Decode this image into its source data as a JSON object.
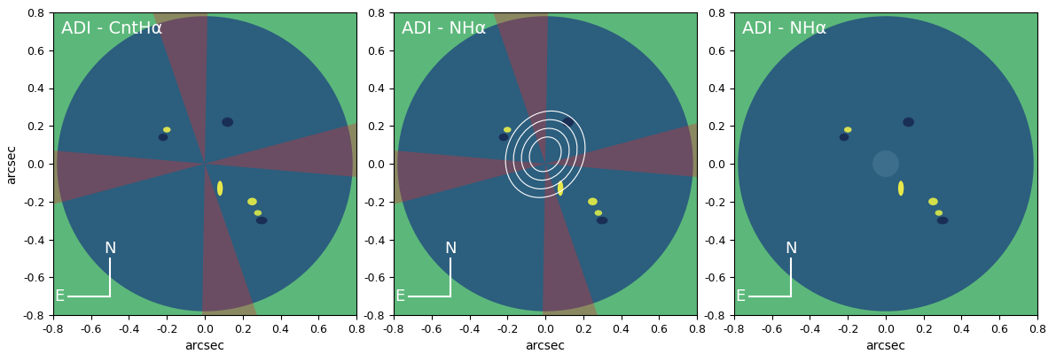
{
  "chart_data": [
    {
      "type": "image",
      "title": "ADI - CntHα",
      "xlabel": "arcsec",
      "ylabel": "arcsec",
      "xlim": [
        -0.8,
        0.8
      ],
      "ylim": [
        -0.8,
        0.8
      ],
      "xticks": [
        -0.8,
        -0.6,
        -0.4,
        -0.2,
        0.0,
        0.2,
        0.4,
        0.6,
        0.8
      ],
      "yticks": [
        -0.8,
        -0.6,
        -0.4,
        -0.2,
        0.0,
        0.2,
        0.4,
        0.6,
        0.8
      ],
      "annotations": [
        "N",
        "E"
      ]
    },
    {
      "type": "image",
      "title": "ADI - NHα",
      "xlabel": "arcsec",
      "xlim": [
        -0.8,
        0.8
      ],
      "ylim": [
        -0.8,
        0.8
      ],
      "xticks": [
        -0.8,
        -0.6,
        -0.4,
        -0.2,
        0.0,
        0.2,
        0.4,
        0.6,
        0.8
      ],
      "yticks": [
        -0.8,
        -0.6,
        -0.4,
        -0.2,
        0.0,
        0.2,
        0.4,
        0.6,
        0.8
      ],
      "annotations": [
        "N",
        "E"
      ]
    },
    {
      "type": "image",
      "title": "ADI - NHα",
      "xlabel": "arcsec",
      "xlim": [
        -0.8,
        0.8
      ],
      "ylim": [
        -0.8,
        0.8
      ],
      "xticks": [
        -0.8,
        -0.6,
        -0.4,
        -0.2,
        0.0,
        0.2,
        0.4,
        0.6,
        0.8
      ],
      "yticks": [
        -0.8,
        -0.6,
        -0.4,
        -0.2,
        0.0,
        0.2,
        0.4,
        0.6,
        0.8
      ],
      "annotations": [
        "N",
        "E"
      ]
    }
  ]
}
